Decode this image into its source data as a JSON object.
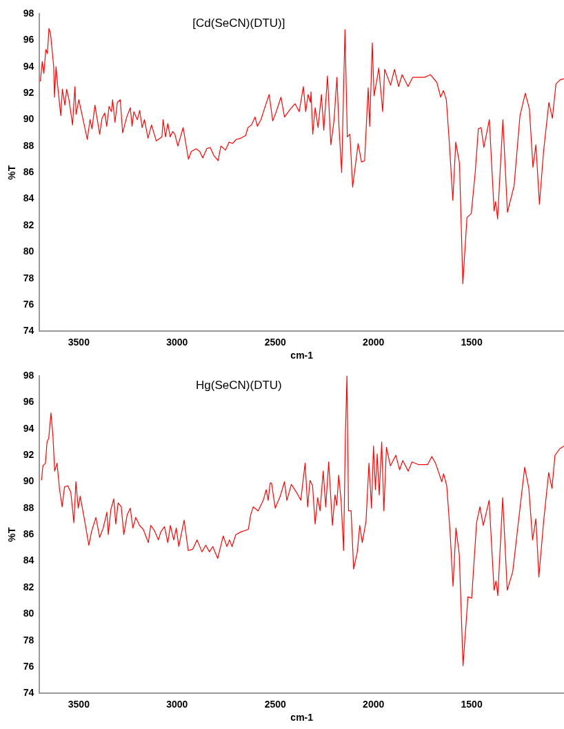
{
  "chart_data": [
    {
      "type": "line",
      "title": "[Cd(SeCN)(DTU)]",
      "xlabel": "cm-1",
      "ylabel": "%T",
      "xlim": [
        3700,
        1030
      ],
      "xticks": [
        3500,
        3000,
        2500,
        2000,
        1500
      ],
      "ylim": [
        74,
        98
      ],
      "yticks": [
        74,
        76,
        78,
        80,
        82,
        84,
        86,
        88,
        90,
        92,
        94,
        96,
        98
      ],
      "grid": false,
      "legend": false,
      "marker": "none",
      "line_style": "solid",
      "series": [
        {
          "color": "#ff0000",
          "x": [
            3696,
            3686,
            3678,
            3668,
            3660,
            3652,
            3644,
            3628,
            3624,
            3616,
            3608,
            3592,
            3584,
            3571,
            3562,
            3550,
            3532,
            3520,
            3514,
            3500,
            3484,
            3457,
            3443,
            3433,
            3418,
            3394,
            3382,
            3368,
            3358,
            3346,
            3334,
            3328,
            3316,
            3304,
            3289,
            3277,
            3256,
            3238,
            3229,
            3220,
            3202,
            3190,
            3178,
            3166,
            3148,
            3130,
            3106,
            3077,
            3071,
            3059,
            3047,
            3035,
            3023,
            3011,
            2996,
            2969,
            2942,
            2927,
            2903,
            2885,
            2869,
            2849,
            2831,
            2813,
            2791,
            2777,
            2753,
            2735,
            2717,
            2699,
            2675,
            2651,
            2639,
            2621,
            2603,
            2591,
            2573,
            2549,
            2531,
            2513,
            2495,
            2471,
            2453,
            2423,
            2399,
            2378,
            2357,
            2345,
            2333,
            2321,
            2318,
            2309,
            2297,
            2282,
            2265,
            2253,
            2234,
            2217,
            2201,
            2186,
            2176,
            2162,
            2145,
            2133,
            2120,
            2106,
            2078,
            2061,
            2045,
            2027,
            2019,
            2006,
            1997,
            1985,
            1973,
            1953,
            1943,
            1913,
            1893,
            1872,
            1854,
            1824,
            1800,
            1740,
            1710,
            1677,
            1658,
            1644,
            1629,
            1614,
            1596,
            1581,
            1562,
            1545,
            1524,
            1502,
            1482,
            1466,
            1452,
            1438,
            1410,
            1386,
            1378,
            1368,
            1341,
            1318,
            1284,
            1254,
            1227,
            1206,
            1188,
            1173,
            1155,
            1134,
            1107,
            1089,
            1071,
            1050,
            1030
          ],
          "values": [
            92.9,
            94.4,
            93.5,
            95.3,
            95.0,
            96.9,
            96.5,
            94.0,
            91.7,
            94.0,
            92.6,
            90.3,
            92.3,
            91.1,
            92.3,
            91.5,
            89.6,
            92.5,
            90.4,
            91.5,
            90.4,
            88.5,
            90.0,
            89.3,
            91.1,
            88.9,
            90.1,
            90.5,
            89.5,
            91.0,
            90.6,
            91.5,
            89.8,
            91.3,
            91.5,
            89.0,
            90.2,
            90.9,
            89.5,
            90.6,
            90.0,
            90.7,
            89.4,
            90.0,
            88.6,
            89.6,
            88.4,
            88.7,
            90.0,
            88.7,
            89.7,
            88.7,
            89.1,
            88.9,
            88.0,
            89.4,
            87.0,
            87.6,
            87.8,
            87.6,
            87.1,
            87.8,
            87.9,
            87.3,
            86.9,
            88.0,
            87.7,
            88.3,
            88.2,
            88.5,
            88.6,
            88.8,
            89.4,
            89.6,
            90.2,
            89.5,
            90.0,
            91.1,
            91.9,
            89.9,
            90.6,
            91.7,
            90.2,
            90.8,
            91.2,
            90.6,
            92.5,
            90.6,
            91.9,
            91.3,
            92.1,
            88.9,
            90.9,
            89.4,
            91.9,
            89.2,
            93.3,
            88.1,
            89.9,
            93.2,
            89.6,
            86.0,
            96.8,
            88.7,
            88.9,
            84.9,
            88.2,
            86.8,
            86.9,
            92.4,
            89.5,
            95.8,
            91.8,
            92.8,
            93.9,
            90.6,
            93.8,
            92.6,
            93.8,
            92.5,
            93.4,
            92.5,
            93.2,
            93.2,
            93.4,
            92.8,
            91.7,
            92.2,
            91.5,
            88.3,
            83.9,
            88.3,
            86.7,
            77.6,
            82.6,
            82.9,
            86.0,
            89.3,
            89.4,
            87.9,
            90.0,
            83.1,
            83.8,
            82.5,
            90.0,
            83.0,
            85.0,
            90.3,
            92.0,
            90.8,
            86.4,
            88.1,
            83.6,
            87.6,
            91.3,
            90.1,
            92.7,
            93.0,
            93.1
          ]
        }
      ]
    },
    {
      "type": "line",
      "title": "Hg(SeCN)(DTU)",
      "xlabel": "cm-1",
      "ylabel": "%T",
      "xlim": [
        3700,
        1030
      ],
      "xticks": [
        3500,
        3000,
        2500,
        2000,
        1500
      ],
      "ylim": [
        74,
        98
      ],
      "yticks": [
        74,
        76,
        78,
        80,
        82,
        84,
        86,
        88,
        90,
        92,
        94,
        96,
        98
      ],
      "grid": false,
      "legend": false,
      "marker": "none",
      "line_style": "solid",
      "series": [
        {
          "color": "#ff0000",
          "x": [
            3690,
            3683,
            3670,
            3662,
            3653,
            3642,
            3632,
            3623,
            3611,
            3598,
            3585,
            3573,
            3556,
            3541,
            3525,
            3515,
            3503,
            3493,
            3471,
            3449,
            3436,
            3413,
            3394,
            3376,
            3357,
            3350,
            3337,
            3322,
            3312,
            3300,
            3284,
            3271,
            3254,
            3238,
            3225,
            3210,
            3191,
            3172,
            3146,
            3134,
            3115,
            3095,
            3083,
            3064,
            3047,
            3034,
            3017,
            3004,
            2991,
            2964,
            2943,
            2920,
            2898,
            2873,
            2854,
            2835,
            2818,
            2793,
            2765,
            2746,
            2733,
            2720,
            2701,
            2676,
            2637,
            2625,
            2612,
            2587,
            2561,
            2546,
            2536,
            2526,
            2519,
            2500,
            2475,
            2453,
            2441,
            2418,
            2392,
            2370,
            2348,
            2335,
            2323,
            2310,
            2297,
            2284,
            2272,
            2256,
            2243,
            2228,
            2209,
            2196,
            2187,
            2177,
            2165,
            2152,
            2143,
            2135,
            2127,
            2114,
            2101,
            2082,
            2070,
            2057,
            2038,
            2023,
            2010,
            2000,
            1990,
            1981,
            1971,
            1958,
            1947,
            1934,
            1914,
            1886,
            1867,
            1851,
            1823,
            1804,
            1772,
            1724,
            1703,
            1684,
            1652,
            1643,
            1627,
            1610,
            1595,
            1580,
            1563,
            1544,
            1519,
            1500,
            1475,
            1458,
            1441,
            1411,
            1386,
            1376,
            1367,
            1342,
            1319,
            1291,
            1230,
            1209,
            1190,
            1173,
            1158,
            1133,
            1108,
            1091,
            1076,
            1051,
            1030
          ],
          "values": [
            90.1,
            91.2,
            91.4,
            93.0,
            93.3,
            95.2,
            93.5,
            90.8,
            91.4,
            89.4,
            88.1,
            89.6,
            89.7,
            89.2,
            86.9,
            90.0,
            88.0,
            88.9,
            87.1,
            85.2,
            86.2,
            87.3,
            85.8,
            86.5,
            87.7,
            86.0,
            87.9,
            88.7,
            86.8,
            88.4,
            88.1,
            86.0,
            87.5,
            88.0,
            86.5,
            87.3,
            86.7,
            86.4,
            85.4,
            86.7,
            86.3,
            85.6,
            86.2,
            86.6,
            85.4,
            86.7,
            85.6,
            86.5,
            85.1,
            87.1,
            84.8,
            84.9,
            85.6,
            84.7,
            85.2,
            84.7,
            85.1,
            84.2,
            85.9,
            85.1,
            85.6,
            85.1,
            86.0,
            86.2,
            86.4,
            87.5,
            88.1,
            87.8,
            88.6,
            89.4,
            88.6,
            89.9,
            89.9,
            88.0,
            88.9,
            90.0,
            88.6,
            89.8,
            89.2,
            88.6,
            91.4,
            88.1,
            90.1,
            89.7,
            86.8,
            88.8,
            87.8,
            90.8,
            88.1,
            91.5,
            86.7,
            89.0,
            88.2,
            90.5,
            88.6,
            84.8,
            93.5,
            98.0,
            87.8,
            87.8,
            83.4,
            84.7,
            86.7,
            85.4,
            87.0,
            91.4,
            88.0,
            92.7,
            89.4,
            92.1,
            89.0,
            93.0,
            87.8,
            92.6,
            91.2,
            92.0,
            90.9,
            91.6,
            90.8,
            91.5,
            91.3,
            91.3,
            91.9,
            91.4,
            90.0,
            90.6,
            89.7,
            86.2,
            82.1,
            86.5,
            84.5,
            76.1,
            81.3,
            81.2,
            86.9,
            88.1,
            86.7,
            88.6,
            81.8,
            82.5,
            81.4,
            88.8,
            81.8,
            83.2,
            91.1,
            89.5,
            85.6,
            87.2,
            82.8,
            87.1,
            90.7,
            89.5,
            92.0,
            92.5,
            92.7
          ]
        }
      ]
    }
  ]
}
